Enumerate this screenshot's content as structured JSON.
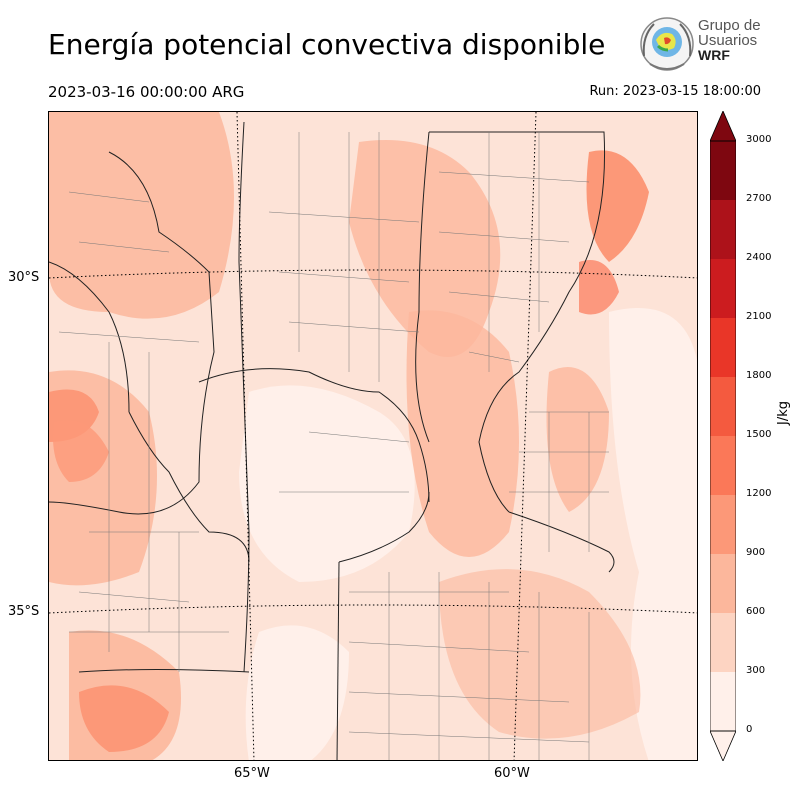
{
  "title": "Energía potencial convectiva disponible",
  "valid_time": "2023-03-16 00:00:00 ARG",
  "run_time": "Run: 2023-03-15 18:00:00",
  "logo": {
    "line1": "Grupo de",
    "line2": "Usuarios",
    "line3": "WRF"
  },
  "map": {
    "lat_labels": [
      "30°S",
      "35°S"
    ],
    "lon_labels": [
      "65°W",
      "60°W"
    ]
  },
  "colorbar": {
    "unit": "J/kg",
    "ticks": [
      "0",
      "300",
      "600",
      "900",
      "1200",
      "1500",
      "1800",
      "2100",
      "2400",
      "2700",
      "3000"
    ],
    "colors": [
      "#fff0ea",
      "#fdd4c2",
      "#fcb79c",
      "#fc9878",
      "#fb7858",
      "#f45a3f",
      "#e93628",
      "#cc1c1f",
      "#ad121a",
      "#7e0710"
    ],
    "extend": "both"
  }
}
